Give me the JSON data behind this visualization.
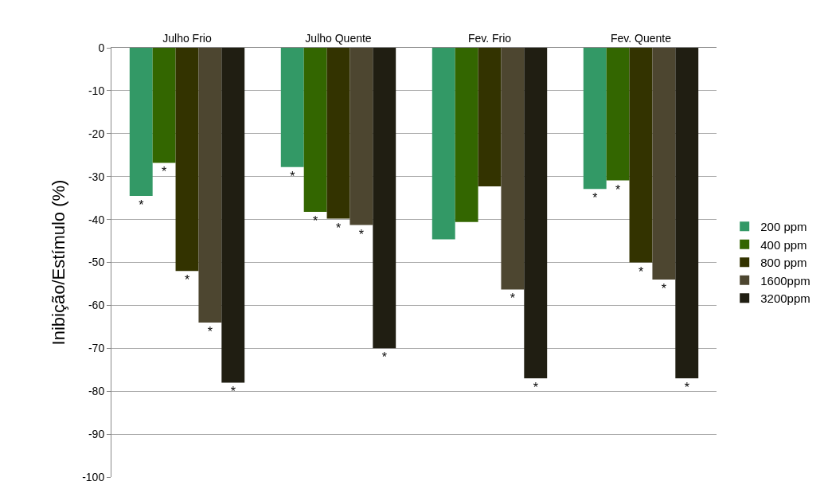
{
  "chart_data": {
    "type": "bar",
    "ylabel": "Inibição/Estímulo (%)",
    "categories": [
      "Julho Frio",
      "Julho Quente",
      "Fev. Frio",
      "Fev. Quente"
    ],
    "series": [
      {
        "name": "200 ppm",
        "color": "#339966",
        "values": [
          -34.5,
          -27.8,
          -44.6,
          -32.9
        ],
        "value_labels": [
          "*",
          "*",
          null,
          "*"
        ]
      },
      {
        "name": "400 ppm",
        "color": "#336600",
        "values": [
          -26.8,
          -38.2,
          -40.6,
          -30.9
        ],
        "value_labels": [
          "*",
          "*",
          null,
          "*"
        ]
      },
      {
        "name": "800 ppm",
        "color": "#333300",
        "values": [
          -52,
          -39.8,
          -32.3,
          -50
        ],
        "value_labels": [
          "*",
          "*",
          null,
          "*"
        ]
      },
      {
        "name": "1600ppm",
        "color": "#4d4630",
        "values": [
          -64,
          -41.3,
          -56.3,
          -54
        ],
        "value_labels": [
          "*",
          "*",
          "*",
          "*"
        ]
      },
      {
        "name": "3200ppm",
        "color": "#201e12",
        "values": [
          -78,
          -70,
          -77,
          -77
        ],
        "value_labels": [
          "*",
          "*",
          "*",
          "*"
        ]
      }
    ],
    "ylim": [
      -100,
      0
    ],
    "yticks": [
      -100,
      -90,
      -80,
      -70,
      -60,
      -50,
      -40,
      -30,
      -20,
      -10,
      0
    ],
    "grid": "y",
    "legend": "right"
  }
}
